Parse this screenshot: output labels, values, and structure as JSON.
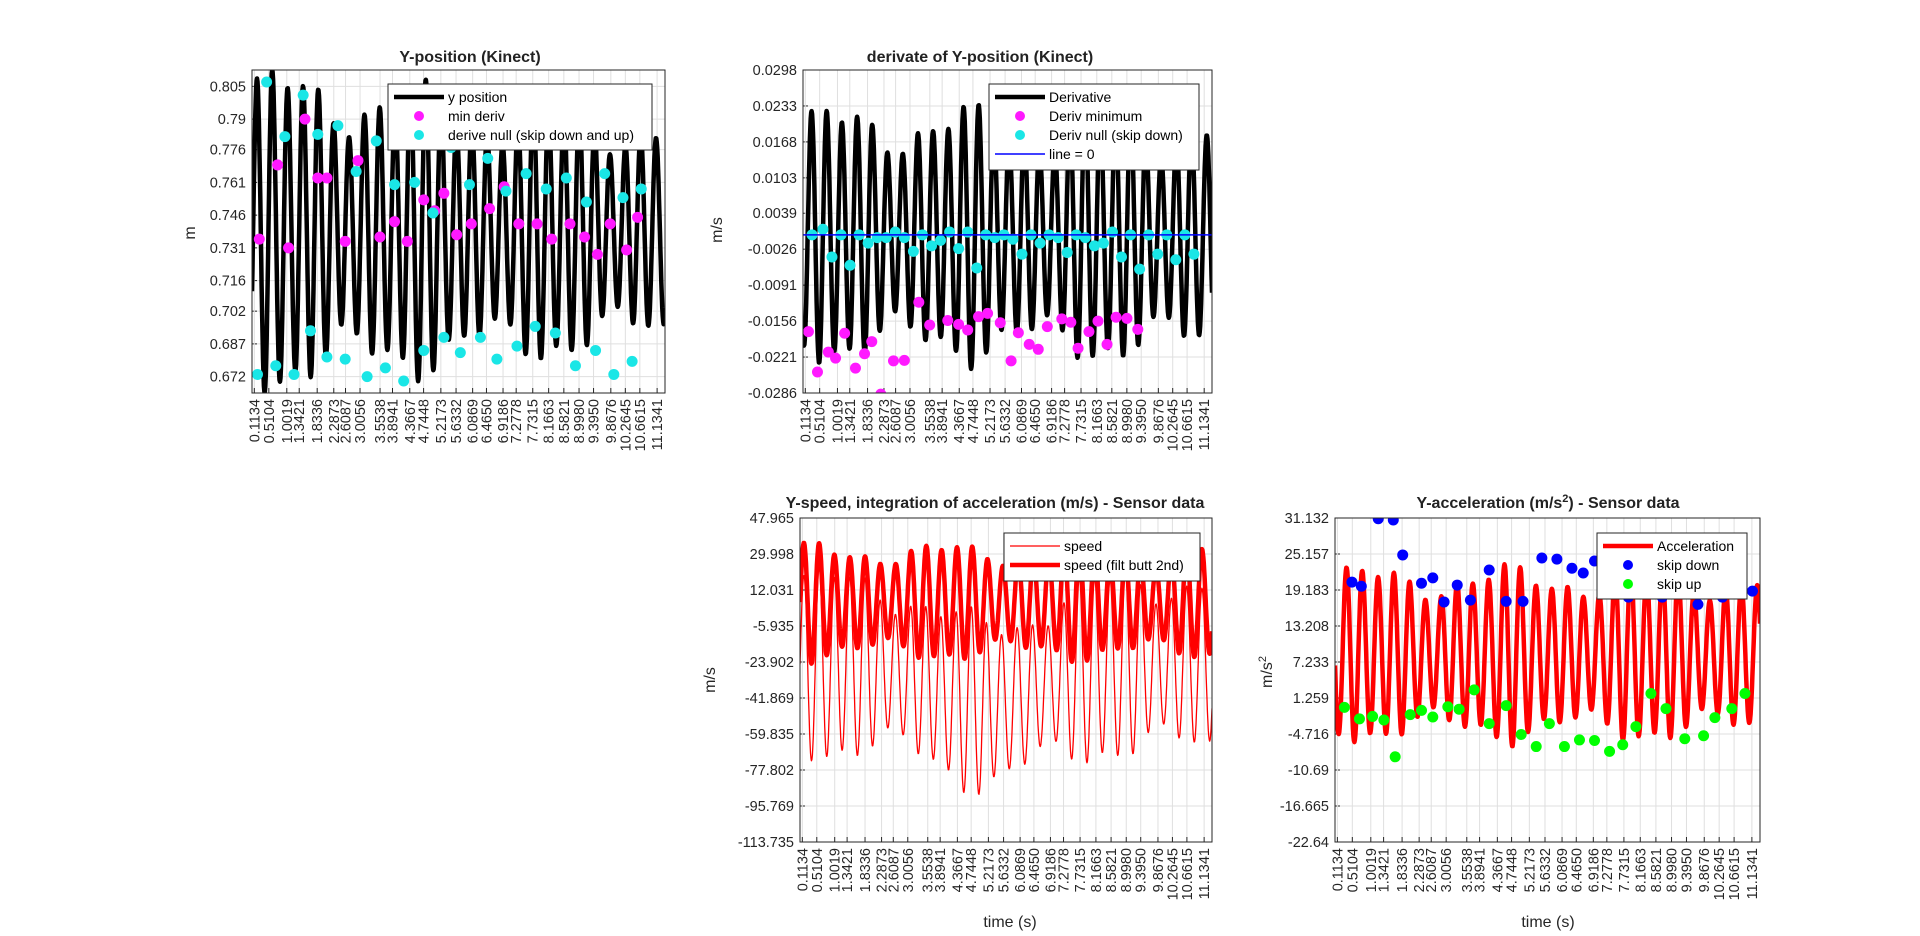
{
  "xticks": [
    "0.1134",
    "0.5104",
    "1.0019",
    "1.3421",
    "1.8336",
    "2.2873",
    "2.6087",
    "3.0056",
    "3.5538",
    "3.8941",
    "4.3667",
    "4.7448",
    "5.2173",
    "5.6332",
    "6.0869",
    "6.4650",
    "6.9186",
    "7.2778",
    "7.7315",
    "8.1663",
    "8.5821",
    "8.9980",
    "9.3950",
    "9.8676",
    "10.2645",
    "10.6615",
    "11.1341"
  ],
  "chart_data": [
    {
      "id": "ypos",
      "type": "line",
      "title": "Y-position (Kinect)",
      "xlabel": "",
      "ylabel": "m",
      "xlim": [
        0.05,
        11.35
      ],
      "ylim": [
        0.6645,
        0.8125
      ],
      "yticks": [
        "0.672",
        "0.687",
        "0.702",
        "0.716",
        "0.731",
        "0.746",
        "0.761",
        "0.776",
        "0.79",
        "0.805"
      ],
      "legend_position": "top-right",
      "colors": {
        "line": "#000000",
        "min": "#ff19ff",
        "null": "#1ae6e6"
      },
      "legend": [
        "y position",
        "min deriv",
        "derive null (skip down and up)"
      ],
      "series": [
        {
          "name": "y position",
          "style": "line",
          "osc": {
            "period": 0.42,
            "center": 0.739,
            "amp": 0.062,
            "phase": 0.08,
            "decay": 0.0025
          }
        },
        {
          "name": "min deriv",
          "style": "points",
          "x": [
            0.25,
            0.75,
            1.05,
            1.5,
            1.85,
            2.1,
            2.6,
            2.95,
            3.55,
            3.95,
            4.3,
            4.75,
            5.05,
            5.3,
            5.65,
            6.05,
            6.55,
            6.95,
            7.35,
            7.85,
            8.25,
            8.75,
            9.15,
            9.5,
            9.85,
            10.3,
            10.6
          ],
          "y": [
            0.735,
            0.769,
            0.731,
            0.79,
            0.763,
            0.763,
            0.734,
            0.771,
            0.736,
            0.743,
            0.734,
            0.753,
            0.748,
            0.756,
            0.737,
            0.742,
            0.749,
            0.759,
            0.742,
            0.742,
            0.735,
            0.742,
            0.736,
            0.728,
            0.742,
            0.73,
            0.745
          ]
        },
        {
          "name": "derive null (skip down and up)",
          "style": "points",
          "x": [
            0.2,
            0.45,
            0.7,
            0.95,
            1.2,
            1.45,
            1.65,
            1.85,
            2.1,
            2.4,
            2.6,
            2.9,
            3.2,
            3.45,
            3.7,
            3.95,
            4.2,
            4.5,
            4.75,
            5.0,
            5.3,
            5.5,
            5.75,
            6.0,
            6.3,
            6.5,
            6.75,
            7.0,
            7.3,
            7.55,
            7.8,
            8.1,
            8.35,
            8.65,
            8.9,
            9.2,
            9.45,
            9.7,
            9.95,
            10.2,
            10.45,
            10.7
          ],
          "y": [
            0.673,
            0.807,
            0.677,
            0.782,
            0.673,
            0.801,
            0.693,
            0.783,
            0.681,
            0.787,
            0.68,
            0.766,
            0.672,
            0.78,
            0.676,
            0.76,
            0.67,
            0.761,
            0.684,
            0.747,
            0.69,
            0.777,
            0.683,
            0.76,
            0.69,
            0.772,
            0.68,
            0.757,
            0.686,
            0.765,
            0.695,
            0.758,
            0.692,
            0.763,
            0.677,
            0.752,
            0.684,
            0.765,
            0.673,
            0.754,
            0.679,
            0.758
          ]
        }
      ]
    },
    {
      "id": "deriv",
      "type": "line",
      "title": "derivate of Y-position (Kinect)",
      "xlabel": "",
      "ylabel": "m/s",
      "xlim": [
        0.05,
        11.35
      ],
      "ylim": [
        -0.0286,
        0.0298
      ],
      "yticks": [
        "-0.0286",
        "-0.0221",
        "-0.0156",
        "-0.0091",
        "-0.0026",
        "0.0039",
        "0.0103",
        "0.0168",
        "0.0233",
        "0.0298"
      ],
      "legend_position": "top-right",
      "colors": {
        "line": "#000000",
        "min": "#ff19ff",
        "null": "#1ae6e6",
        "zero": "#0000ff"
      },
      "legend": [
        "Derivative",
        "Deriv minimum",
        "Deriv null (skip down)",
        "line = 0"
      ],
      "series": [
        {
          "name": "Derivative",
          "style": "line",
          "osc": {
            "period": 0.42,
            "center": 0.0,
            "amp": 0.019,
            "phase": 0.18,
            "decay": 0.0
          }
        },
        {
          "name": "Deriv minimum",
          "style": "points",
          "x": [
            0.2,
            0.45,
            0.75,
            0.95,
            1.2,
            1.5,
            1.75,
            1.95,
            2.2,
            2.55,
            2.85,
            3.25,
            3.55,
            4.05,
            4.35,
            4.6,
            4.9,
            5.15,
            5.5,
            5.8,
            6.0,
            6.3,
            6.55,
            6.8,
            7.2,
            7.45,
            7.65,
            7.95,
            8.2,
            8.45,
            8.7,
            9.0,
            9.3
          ],
          "y": [
            -0.0175,
            -0.0248,
            -0.0212,
            -0.0223,
            -0.0178,
            -0.0241,
            -0.0215,
            -0.0193,
            -0.0288,
            -0.0228,
            -0.0227,
            -0.0122,
            -0.0163,
            -0.0155,
            -0.0162,
            -0.0172,
            -0.0148,
            -0.0142,
            -0.0159,
            -0.0228,
            -0.0177,
            -0.0198,
            -0.0207,
            -0.0166,
            -0.0152,
            -0.0158,
            -0.0205,
            -0.0175,
            -0.0156,
            -0.0198,
            -0.0149,
            -0.0151,
            -0.0171
          ]
        },
        {
          "name": "Deriv null (skip down)",
          "style": "points",
          "x": [
            0.3,
            0.6,
            0.85,
            1.1,
            1.35,
            1.6,
            1.85,
            2.1,
            2.35,
            2.6,
            2.85,
            3.1,
            3.35,
            3.6,
            3.85,
            4.1,
            4.35,
            4.6,
            4.85,
            5.1,
            5.35,
            5.6,
            5.85,
            6.1,
            6.35,
            6.6,
            6.85,
            7.1,
            7.35,
            7.6,
            7.85,
            8.1,
            8.35,
            8.6,
            8.85,
            9.1,
            9.35,
            9.6,
            9.85,
            10.1,
            10.35,
            10.6,
            10.85
          ],
          "y": [
            0.0,
            0.001,
            -0.004,
            0.0,
            -0.0055,
            0.0,
            -0.0015,
            -0.0005,
            -0.0005,
            0.0005,
            -0.0005,
            -0.003,
            0.0,
            -0.002,
            -0.001,
            0.0005,
            -0.0025,
            0.0005,
            -0.006,
            0.0,
            -0.0005,
            0.0,
            -0.0008,
            -0.0035,
            0.0,
            -0.0015,
            0.0,
            -0.0005,
            -0.0032,
            0.0,
            -0.0005,
            -0.002,
            -0.0015,
            0.0005,
            -0.004,
            0.0,
            -0.0062,
            0.0,
            -0.0035,
            0.0,
            -0.0045,
            0.0,
            -0.0035
          ]
        },
        {
          "name": "line = 0",
          "style": "hline",
          "y": 0.0
        }
      ]
    },
    {
      "id": "speed",
      "type": "line",
      "title": "Y-speed, integration of acceleration (m/s) - Sensor data",
      "xlabel": "time (s)",
      "ylabel": "m/s",
      "xlim": [
        0.05,
        11.35
      ],
      "ylim": [
        -113.735,
        47.965
      ],
      "yticks": [
        "-113.735",
        "-95.769",
        "-77.802",
        "-59.835",
        "-41.869",
        "-23.902",
        "-5.935",
        "12.031",
        "29.998",
        "47.965"
      ],
      "legend_position": "top-right",
      "colors": {
        "thin": "#ff0000",
        "thick": "#ff0000"
      },
      "legend": [
        "speed",
        "speed (filt butt 2nd)"
      ],
      "series": [
        {
          "name": "speed",
          "style": "line",
          "osc": {
            "period": 0.42,
            "center": -25,
            "amp": 40,
            "phase": 0.05,
            "trend": -40,
            "trend_center": 5.2,
            "trend_width": 1.9
          }
        },
        {
          "name": "speed (filt butt 2nd)",
          "style": "line",
          "osc": {
            "period": 0.42,
            "center": 6,
            "amp": 24,
            "phase": 0.05
          }
        }
      ]
    },
    {
      "id": "accel",
      "type": "line",
      "title": "Y-acceleration (m/s2) - Sensor data",
      "xlabel": "time (s)",
      "ylabel": "m/s2",
      "xlim": [
        0.05,
        11.35
      ],
      "ylim": [
        -22.64,
        31.132
      ],
      "yticks": [
        "-22.64",
        "-16.665",
        "-10.69",
        "-4.716",
        "1.259",
        "7.233",
        "13.208",
        "19.183",
        "25.157",
        "31.132"
      ],
      "legend_position": "top-right",
      "colors": {
        "line": "#ff0000",
        "down": "#0000ff",
        "up": "#00ff00"
      },
      "legend": [
        "Acceleration",
        "skip down",
        "skip up"
      ],
      "series": [
        {
          "name": "Acceleration",
          "style": "line",
          "osc": {
            "period": 0.42,
            "center": 8.5,
            "amp": 12,
            "phase": 0.25
          }
        },
        {
          "name": "skip down",
          "style": "points",
          "x": [
            0.5,
            0.75,
            1.2,
            1.6,
            1.85,
            2.35,
            2.65,
            2.95,
            3.3,
            3.65,
            4.15,
            4.6,
            5.05,
            5.55,
            5.95,
            6.35,
            6.65,
            6.95,
            7.35,
            7.85,
            8.1,
            8.4,
            8.75,
            9.2,
            9.7,
            10.05,
            10.35,
            10.7,
            11.15
          ],
          "y": [
            20.5,
            19.8,
            31.0,
            30.8,
            25.0,
            20.3,
            21.2,
            17.2,
            20.0,
            17.5,
            22.5,
            17.3,
            17.3,
            24.5,
            24.3,
            22.8,
            22.0,
            24.0,
            19.5,
            18.0,
            24.5,
            20.0,
            18.0,
            19.5,
            16.8,
            19.5,
            18.0,
            19.8,
            19.0
          ]
        },
        {
          "name": "skip up",
          "style": "points",
          "x": [
            0.3,
            0.7,
            1.05,
            1.35,
            1.65,
            2.05,
            2.35,
            2.65,
            3.05,
            3.35,
            3.75,
            4.15,
            4.6,
            5.0,
            5.4,
            5.75,
            6.15,
            6.55,
            6.95,
            7.35,
            7.7,
            8.05,
            8.45,
            8.85,
            9.35,
            9.85,
            10.15,
            10.6,
            10.95
          ],
          "y": [
            -0.3,
            -2.2,
            -1.8,
            -2.4,
            -8.5,
            -1.5,
            -0.8,
            -1.9,
            -0.2,
            -0.6,
            2.6,
            -3.0,
            0.0,
            -4.8,
            -6.8,
            -3.0,
            -6.8,
            -5.7,
            -5.8,
            -7.6,
            -6.5,
            -3.5,
            2.0,
            -0.5,
            -5.5,
            -5.0,
            -2.0,
            -0.5,
            2.0
          ]
        }
      ]
    }
  ]
}
